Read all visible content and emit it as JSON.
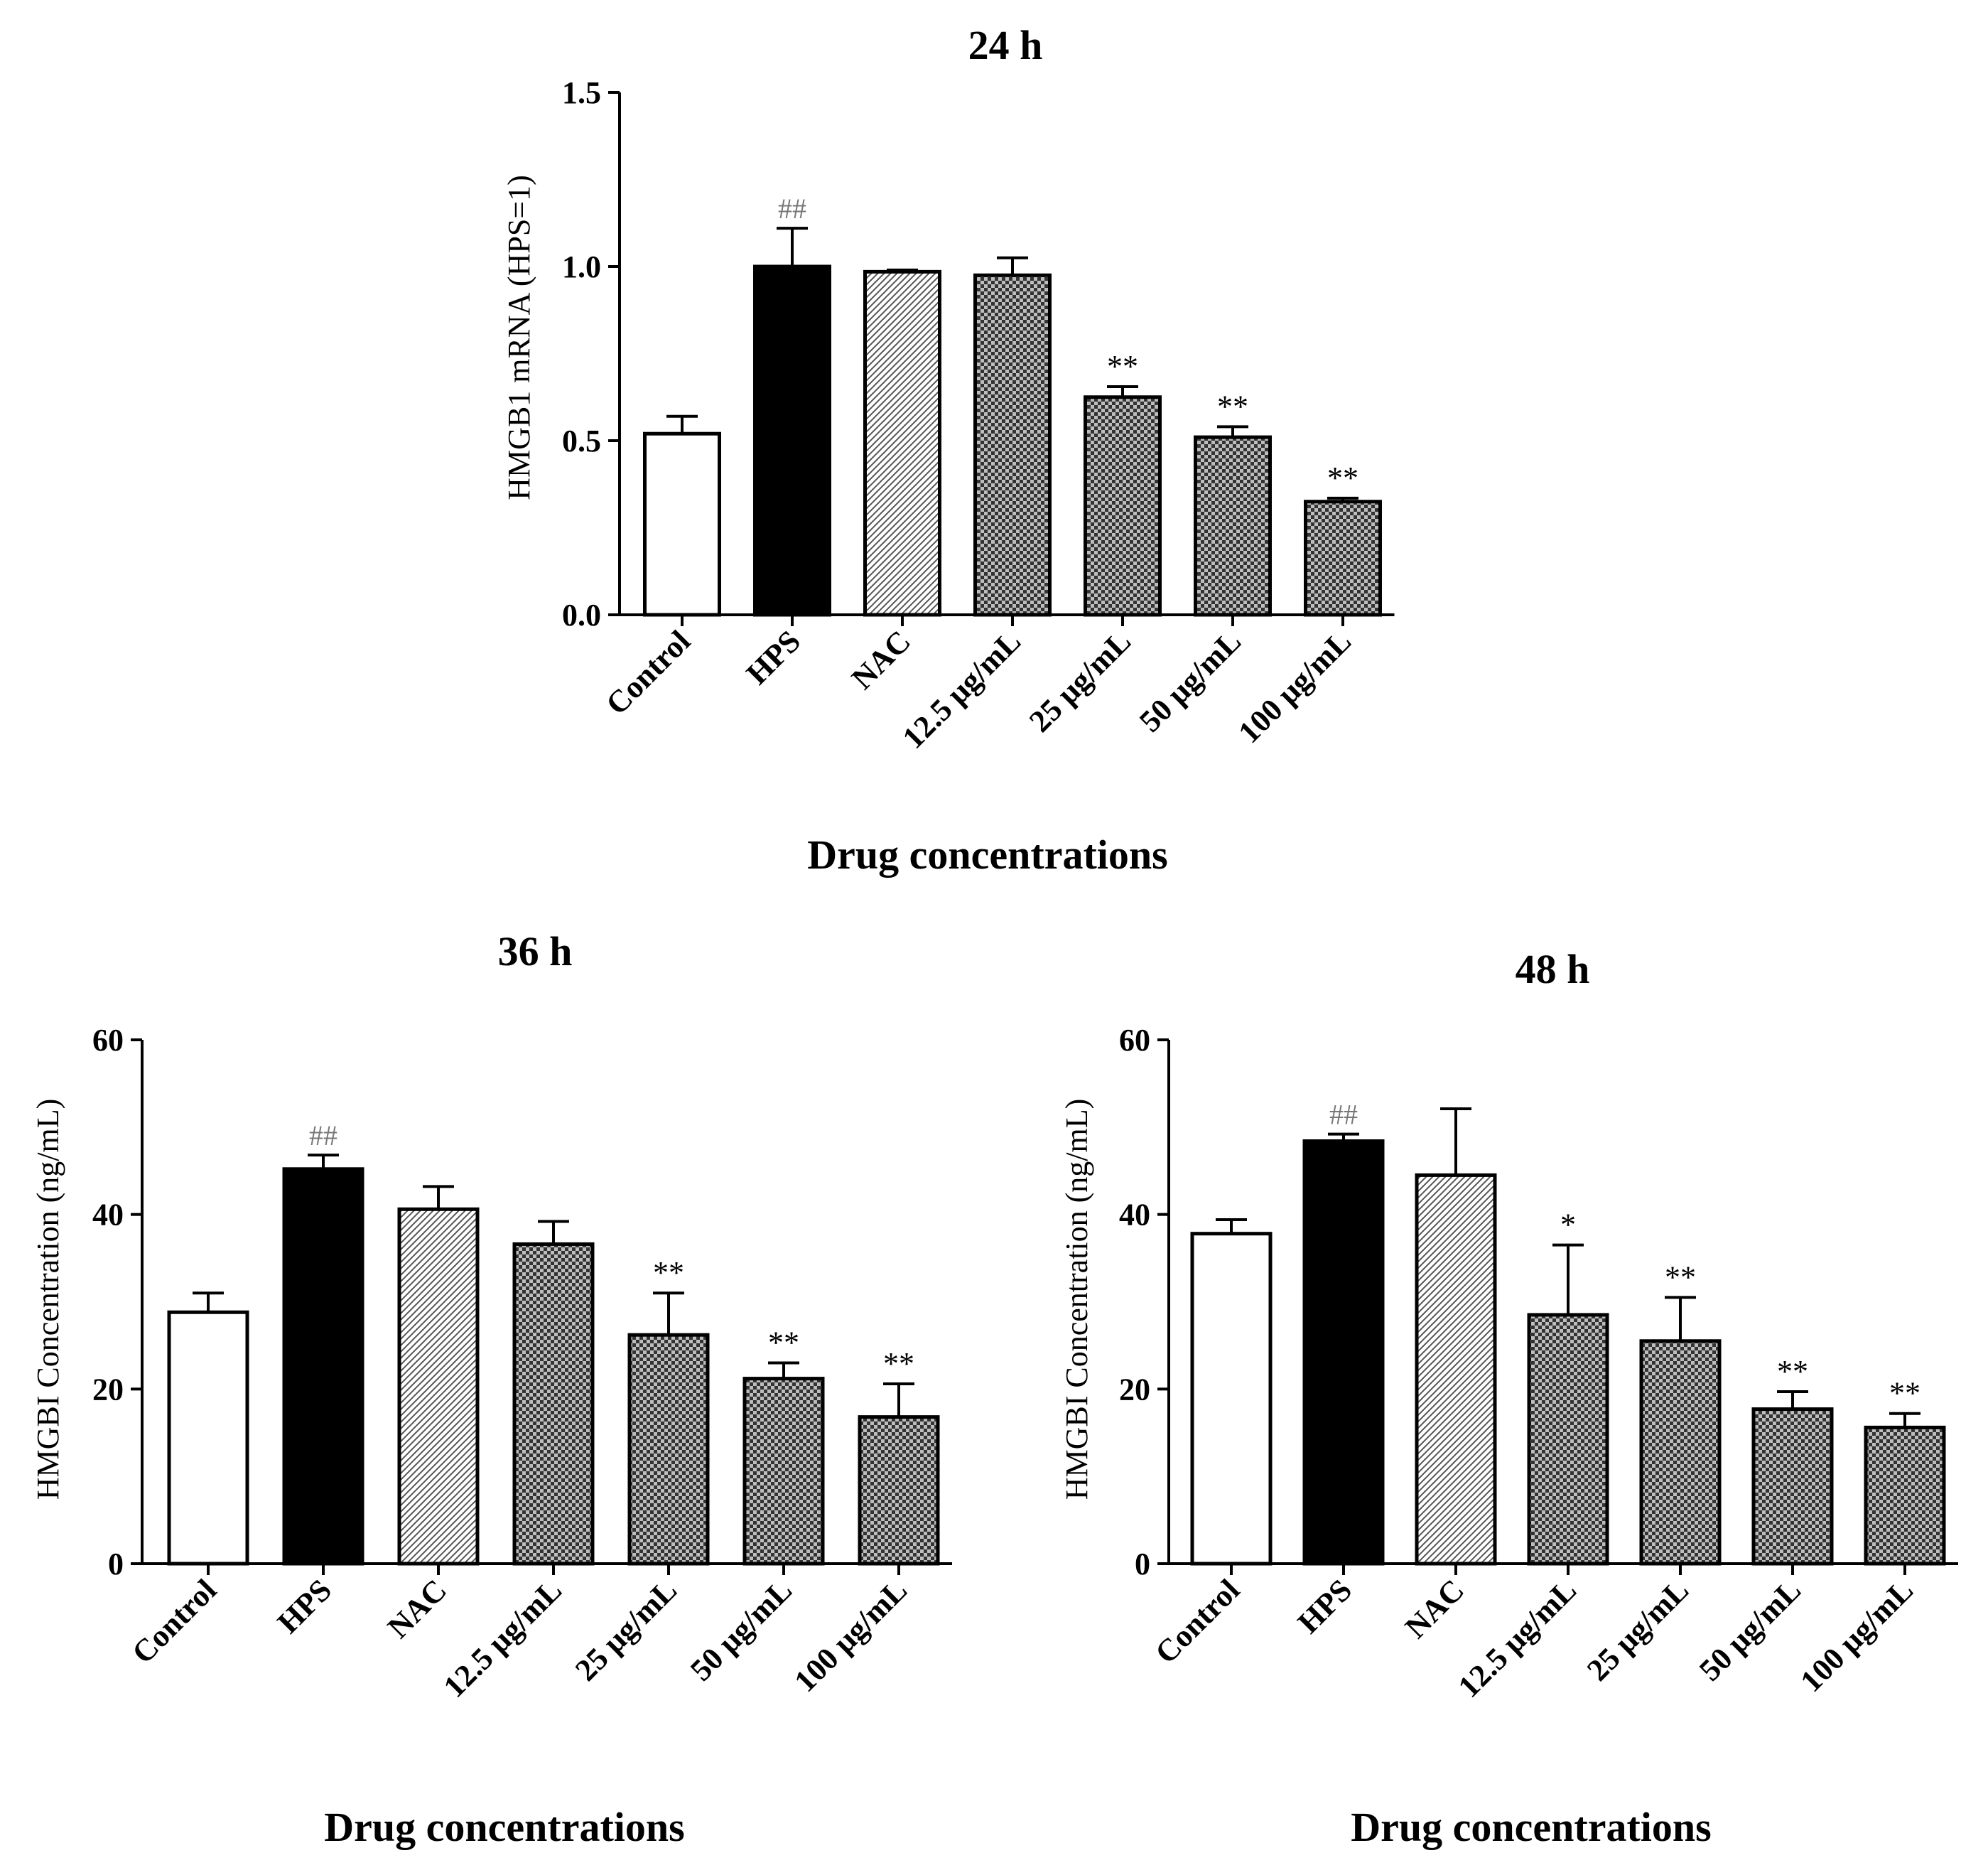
{
  "chart_data": [
    {
      "type": "bar",
      "title": "24 h",
      "xlabel": "Drug concentrations",
      "ylabel": "HMGB1 mRNA (HPS=1)",
      "ylim": [
        0,
        1.5
      ],
      "yticks": [
        "0.0",
        "0.5",
        "1.0",
        "1.5"
      ],
      "categories": [
        "Control",
        "HPS",
        "NAC",
        "12.5 μg/mL",
        "25 μg/mL",
        "50 μg/mL",
        "100 μg/mL"
      ],
      "values": [
        0.52,
        1.0,
        0.985,
        0.975,
        0.625,
        0.51,
        0.325
      ],
      "errors": [
        0.05,
        0.11,
        0.005,
        0.05,
        0.03,
        0.03,
        0.01
      ],
      "annotations": [
        "",
        "##",
        "",
        "",
        "**",
        "**",
        "**"
      ],
      "fills": [
        "white",
        "black",
        "diagonal",
        "checker",
        "checker",
        "checker",
        "checker"
      ]
    },
    {
      "type": "bar",
      "title": "36 h",
      "xlabel": "Drug concentrations",
      "ylabel": "HMGBI Concentration (ng/mL)",
      "ylim": [
        0,
        60
      ],
      "yticks": [
        "0",
        "20",
        "40",
        "60"
      ],
      "categories": [
        "Control",
        "HPS",
        "NAC",
        "12.5 μg/mL",
        "25 μg/mL",
        "50 μg/mL",
        "100 μg/mL"
      ],
      "values": [
        28.8,
        45.2,
        40.6,
        36.6,
        26.2,
        21.2,
        16.8
      ],
      "errors": [
        2.2,
        1.6,
        2.6,
        2.6,
        4.8,
        1.8,
        3.8
      ],
      "annotations": [
        "",
        "##",
        "",
        "",
        "**",
        "**",
        "**"
      ],
      "fills": [
        "white",
        "black",
        "diagonal",
        "checker",
        "checker",
        "checker",
        "checker"
      ]
    },
    {
      "type": "bar",
      "title": "48 h",
      "xlabel": "Drug concentrations",
      "ylabel": "HMGBI Concentration (ng/mL)",
      "ylim": [
        0,
        60
      ],
      "yticks": [
        "0",
        "20",
        "40",
        "60"
      ],
      "categories": [
        "Control",
        "HPS",
        "NAC",
        "12.5 μg/mL",
        "25 μg/mL",
        "50 μg/mL",
        "100 μg/mL"
      ],
      "values": [
        37.8,
        48.4,
        44.5,
        28.5,
        25.5,
        17.7,
        15.6
      ],
      "errors": [
        1.6,
        0.8,
        7.6,
        8.0,
        5.0,
        2.0,
        1.6
      ],
      "annotations": [
        "",
        "##",
        "",
        "*",
        "**",
        "**",
        "**"
      ],
      "fills": [
        "white",
        "black",
        "diagonal",
        "checker",
        "checker",
        "checker",
        "checker"
      ]
    }
  ]
}
